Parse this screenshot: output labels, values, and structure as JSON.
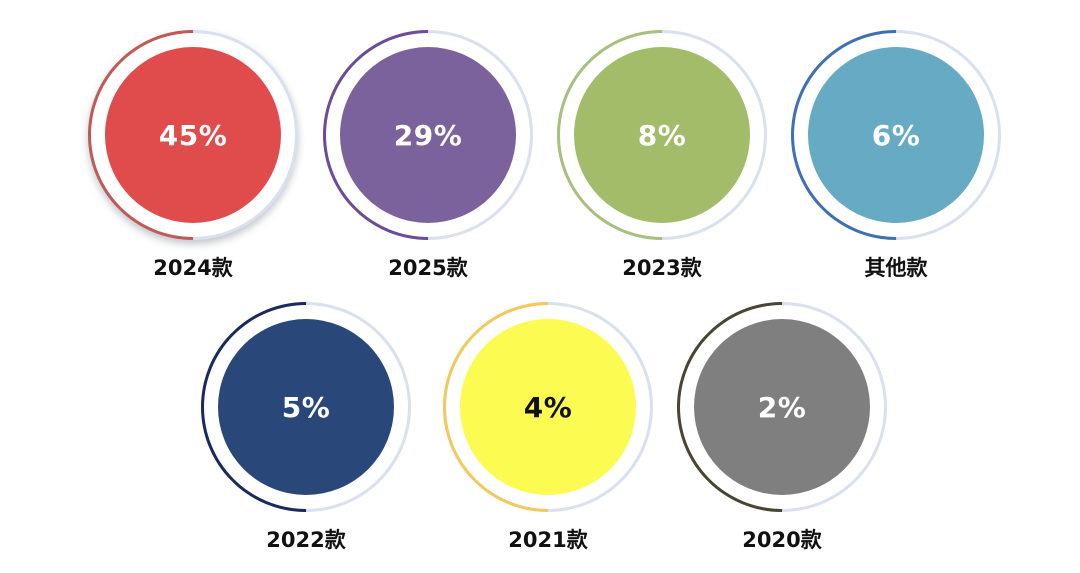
{
  "chart_data": {
    "type": "table",
    "items": [
      {
        "label": "2024款",
        "value": 45,
        "display": "45%",
        "color": "#e04b4b",
        "ring_color": "#c05a56",
        "text_color": "#ffffff"
      },
      {
        "label": "2025款",
        "value": 29,
        "display": "29%",
        "color": "#7c629c",
        "ring_color": "#6a4c9a",
        "text_color": "#ffffff"
      },
      {
        "label": "2023款",
        "value": 8,
        "display": "8%",
        "color": "#a2bc69",
        "ring_color": "#a8c07e",
        "text_color": "#ffffff"
      },
      {
        "label": "其他款",
        "value": 6,
        "display": "6%",
        "color": "#66aac4",
        "ring_color": "#3e70b5",
        "text_color": "#ffffff"
      },
      {
        "label": "2022款",
        "value": 5,
        "display": "5%",
        "color": "#2a4779",
        "ring_color": "#1a2a60",
        "text_color": "#ffffff"
      },
      {
        "label": "2021款",
        "value": 4,
        "display": "4%",
        "color": "#fbfb52",
        "ring_color": "#f2c95b",
        "text_color": "#111111"
      },
      {
        "label": "2020款",
        "value": 2,
        "display": "2%",
        "color": "#7f7f7f",
        "ring_color": "#4a4533",
        "text_color": "#ffffff"
      }
    ]
  }
}
